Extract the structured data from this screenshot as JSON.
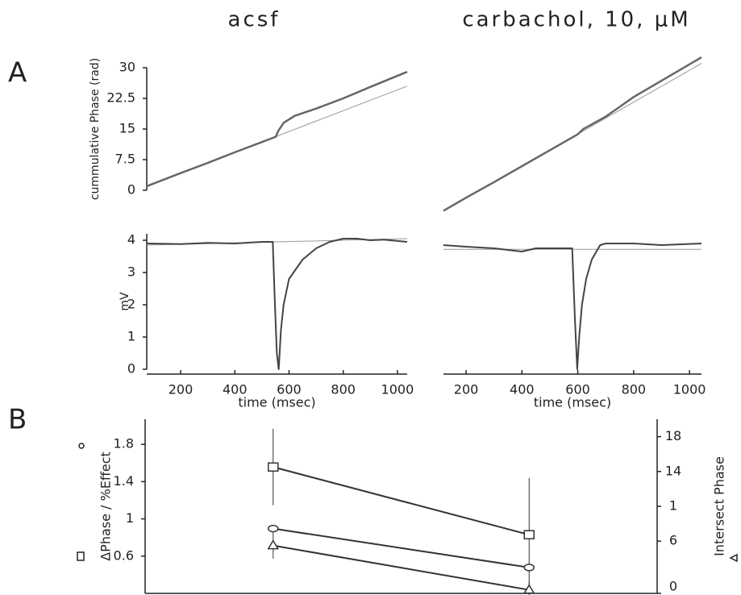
{
  "headers": [
    "acsf",
    "carbachol, 10, μM"
  ],
  "panels": [
    "A",
    "B"
  ],
  "chart_data": [
    {
      "type": "line",
      "ylabel": "cummulative Phase (rad)",
      "xlim": [
        75,
        1036
      ],
      "ylim": [
        0,
        30
      ],
      "yticks": [
        0,
        7.5,
        15,
        22.5,
        30
      ],
      "series": [
        {
          "color": "#999999",
          "width": 1,
          "x": [
            75,
            1036
          ],
          "values": [
            1,
            25.5
          ]
        },
        {
          "color": "#666666",
          "width": 2.5,
          "x": [
            75,
            200,
            300,
            400,
            500,
            551,
            560,
            580,
            620,
            700,
            800,
            900,
            1036
          ],
          "values": [
            1,
            4.2,
            6.7,
            9.3,
            11.8,
            13.1,
            14.5,
            16.5,
            18.2,
            20,
            22.5,
            25.3,
            29
          ]
        }
      ]
    },
    {
      "type": "line",
      "xlim": [
        119,
        1043
      ],
      "ylim": [
        -5.7,
        33.7
      ],
      "series": [
        {
          "color": "#999999",
          "width": 1,
          "x": [
            119,
            1043
          ],
          "values": [
            -5,
            31
          ]
        },
        {
          "color": "#666666",
          "width": 2.5,
          "x": [
            119,
            200,
            300,
            400,
            500,
            600,
            620,
            700,
            800,
            900,
            1043
          ],
          "values": [
            -5,
            -1.8,
            2,
            5.9,
            9.8,
            13.7,
            15,
            18,
            22.8,
            26.8,
            32.5
          ]
        }
      ]
    },
    {
      "type": "line",
      "ylabel": "mV",
      "xlabel": "time (msec)",
      "xlim": [
        75,
        1036
      ],
      "ylim": [
        0,
        4.2
      ],
      "yticks": [
        0,
        1,
        2,
        3,
        4
      ],
      "xticks": [
        200,
        400,
        600,
        800,
        1000
      ],
      "series": [
        {
          "color": "#999999",
          "width": 1,
          "x": [
            75,
            1036
          ],
          "values": [
            3.85,
            4.05
          ]
        },
        {
          "color": "#444444",
          "width": 2,
          "x": [
            75,
            200,
            300,
            400,
            500,
            540,
            548,
            555,
            562,
            570,
            580,
            600,
            650,
            700,
            750,
            800,
            850,
            900,
            950,
            1036
          ],
          "values": [
            3.9,
            3.88,
            3.92,
            3.9,
            3.95,
            3.95,
            2,
            0.5,
            0,
            1.2,
            2,
            2.8,
            3.4,
            3.75,
            3.95,
            4.05,
            4.05,
            4,
            4.02,
            3.95
          ]
        }
      ]
    },
    {
      "type": "line",
      "xlabel": "time (msec)",
      "xlim": [
        119,
        1043
      ],
      "ylim": [
        0,
        4.2
      ],
      "xticks": [
        200,
        400,
        600,
        800,
        1000
      ],
      "series": [
        {
          "color": "#999999",
          "width": 1,
          "x": [
            119,
            1043
          ],
          "values": [
            3.72,
            3.72
          ]
        },
        {
          "color": "#444444",
          "width": 2,
          "x": [
            119,
            200,
            300,
            400,
            450,
            500,
            580,
            590,
            598,
            605,
            615,
            630,
            650,
            680,
            700,
            800,
            900,
            1043
          ],
          "values": [
            3.85,
            3.8,
            3.75,
            3.65,
            3.75,
            3.75,
            3.75,
            1.5,
            0,
            1,
            2,
            2.8,
            3.4,
            3.85,
            3.9,
            3.9,
            3.85,
            3.9
          ]
        }
      ]
    },
    {
      "type": "line",
      "ylabel": "ΔPhase / %Effect",
      "y2label": "Intersect Phase",
      "categories": [
        null,
        null
      ],
      "ylim": [
        0.2,
        2.07
      ],
      "yticks": [
        0.6,
        1,
        1.4,
        1.8
      ],
      "y2lim": [
        0,
        20
      ],
      "y2ticks": [
        0,
        6,
        {
          "value": 10,
          "label": "1"
        },
        14,
        18
      ],
      "series": [
        {
          "color": "#333333",
          "marker": "square",
          "values": [
            1.557,
            0.83
          ],
          "errors": [
            0.41,
            0.61
          ]
        },
        {
          "color": "#333333",
          "marker": "circle",
          "values": [
            0.896,
            0.478
          ]
        },
        {
          "color": "#333333",
          "marker": "triangle",
          "axis": "y2",
          "values": [
            5.5,
            0.4
          ],
          "errors": [
            1.5,
            1.0
          ]
        }
      ]
    }
  ]
}
